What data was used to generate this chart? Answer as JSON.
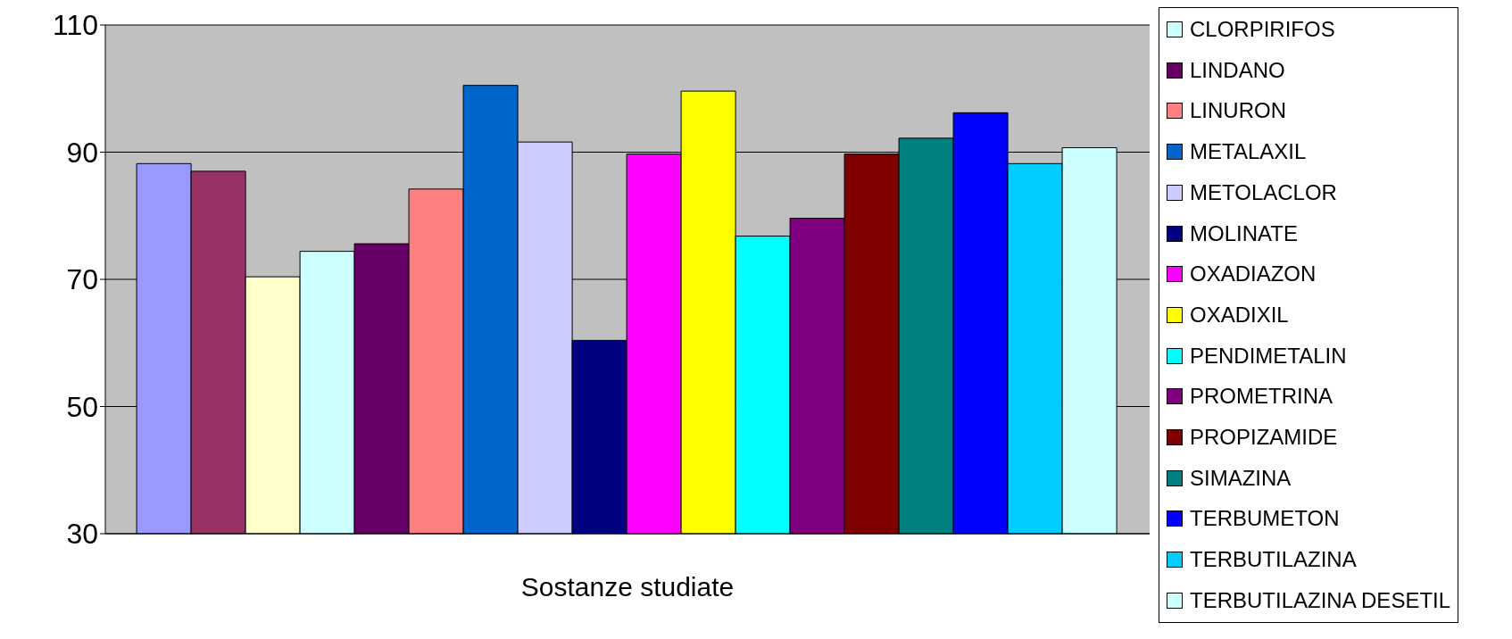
{
  "chart_data": {
    "type": "bar",
    "xlabel": "Sostanze studiate",
    "categories": [
      null
    ],
    "ylim": [
      30,
      110
    ],
    "yticks": [
      30,
      50,
      70,
      90,
      110
    ],
    "grid": "y",
    "legend": "right",
    "series": [
      {
        "color": "#9999ff",
        "values": [
          88.2
        ]
      },
      {
        "color": "#993366",
        "values": [
          87.0
        ]
      },
      {
        "color": "#ffffcc",
        "values": [
          70.4
        ]
      },
      {
        "name": "CLORPIRIFOS",
        "color": "#ccffff",
        "values": [
          74.4
        ]
      },
      {
        "name": "LINDANO",
        "color": "#660066",
        "values": [
          75.6
        ]
      },
      {
        "name": "LINURON",
        "color": "#ff8080",
        "values": [
          84.2
        ]
      },
      {
        "name": "METALAXIL",
        "color": "#0066cc",
        "values": [
          100.5
        ]
      },
      {
        "name": "METOLACLOR",
        "color": "#ccccff",
        "values": [
          91.6
        ]
      },
      {
        "name": "MOLINATE",
        "color": "#000080",
        "values": [
          60.4
        ]
      },
      {
        "name": "OXADIAZON",
        "color": "#ff00ff",
        "values": [
          89.7
        ]
      },
      {
        "name": "OXADIXIL",
        "color": "#ffff00",
        "values": [
          99.6
        ]
      },
      {
        "name": "PENDIMETALIN",
        "color": "#00ffff",
        "values": [
          76.8
        ]
      },
      {
        "name": "PROMETRINA",
        "color": "#800080",
        "values": [
          79.6
        ]
      },
      {
        "name": "PROPIZAMIDE",
        "color": "#800000",
        "values": [
          89.7
        ]
      },
      {
        "name": "SIMAZINA",
        "color": "#008080",
        "values": [
          92.2
        ]
      },
      {
        "name": "TERBUMETON",
        "color": "#0000ff",
        "values": [
          96.2
        ]
      },
      {
        "name": "TERBUTILAZINA",
        "color": "#00ccff",
        "values": [
          88.2
        ]
      },
      {
        "name": "TERBUTILAZINA DESETIL",
        "color": "#ccffff",
        "values": [
          90.7
        ]
      }
    ]
  }
}
